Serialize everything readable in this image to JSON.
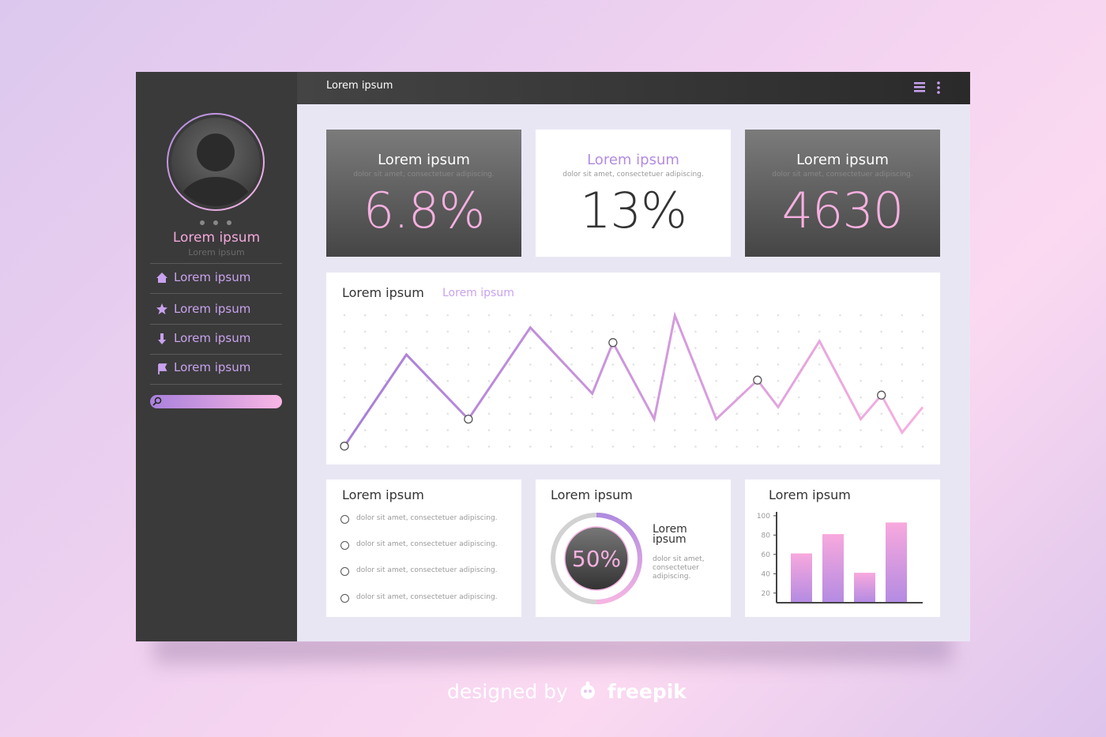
{
  "header": {
    "title": "Lorem ipsum"
  },
  "sidebar": {
    "name": "Lorem ipsum",
    "subtitle": "Lorem ipsum",
    "nav": [
      "Lorem ipsum",
      "Lorem ipsum",
      "Lorem ipsum",
      "Lorem ipsum"
    ]
  },
  "stats": [
    {
      "title": "Lorem ipsum",
      "subtitle": "dolor sit amet, consectetuer adipiscing.",
      "value": "6.8%"
    },
    {
      "title": "Lorem ipsum",
      "subtitle": "dolor sit amet, consectetuer adipiscing.",
      "value": "13%"
    },
    {
      "title": "Lorem ipsum",
      "subtitle": "dolor sit amet, consectetuer adipiscing.",
      "value": "4630"
    }
  ],
  "list_card": {
    "title": "Lorem ipsum",
    "items": [
      "dolor sit amet, consectetuer adipiscing.",
      "dolor sit amet, consectetuer adipiscing.",
      "dolor sit amet, consectetuer adipiscing.",
      "dolor sit amet, consectetuer adipiscing."
    ]
  },
  "chart_data": [
    {
      "type": "line",
      "title": "Lorem ipsum",
      "subtitle": "Lorem ipsum",
      "x": [
        0,
        3,
        6,
        9,
        12,
        13,
        15,
        16,
        18,
        20,
        21,
        23,
        25,
        26,
        27,
        28
      ],
      "values": [
        8,
        69,
        26,
        87,
        43,
        77,
        26,
        95,
        26,
        52,
        34,
        78,
        26,
        42,
        17,
        34
      ],
      "xlim": [
        0,
        28
      ],
      "ylim": [
        0,
        100
      ],
      "markers": [
        0,
        2,
        5,
        9,
        13
      ],
      "grid": true,
      "colors": [
        "#a57ed8",
        "#f7b0e0"
      ]
    },
    {
      "type": "donut",
      "title": "Lorem ipsum",
      "label": "Lorem ipsum",
      "description": "dolor sit amet, consectetuer adipiscing.",
      "values": [
        50
      ],
      "value_labels": [
        "50%"
      ],
      "colors": [
        "#b08be0",
        "#f6b5e3"
      ]
    },
    {
      "type": "bar",
      "title": "Lorem ipsum",
      "categories": [
        null,
        null,
        null,
        null
      ],
      "values": [
        61,
        81,
        41,
        93
      ],
      "ylim": [
        10,
        104
      ],
      "yticks": [
        20,
        40,
        60,
        80,
        100
      ],
      "colors": [
        "#f8a9dd",
        "#b48be2"
      ]
    }
  ],
  "footer": {
    "designed_by": "designed by",
    "brand": "freepik"
  }
}
